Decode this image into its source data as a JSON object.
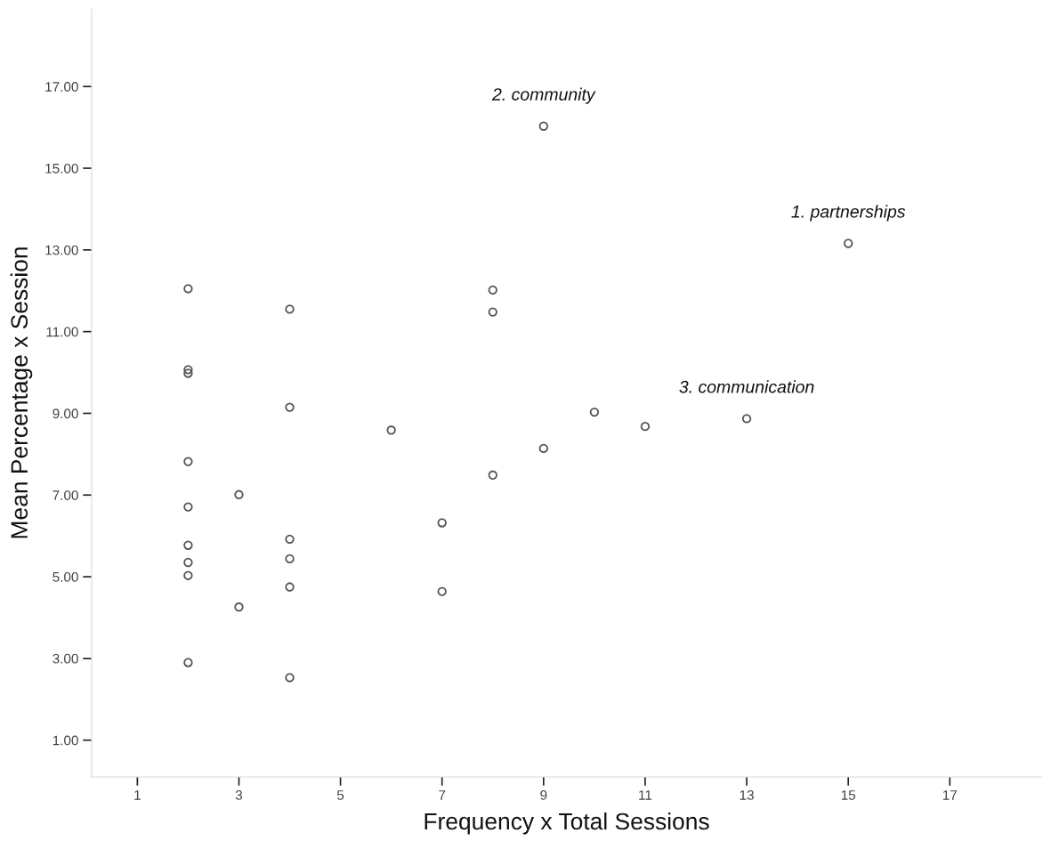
{
  "chart_data": {
    "type": "scatter",
    "xlabel": "Frequency x Total Sessions",
    "ylabel": "Mean Percentage x Session",
    "x": [
      2,
      2,
      2,
      2,
      2,
      2,
      2,
      2,
      2,
      3,
      3,
      4,
      4,
      4,
      4,
      4,
      4,
      6,
      7,
      7,
      8,
      8,
      8,
      9,
      9,
      10,
      11,
      13,
      15
    ],
    "series": [
      {
        "color": "#555555",
        "values": [
          12.05,
          10.07,
          9.98,
          7.82,
          6.71,
          5.77,
          5.35,
          5.03,
          2.9,
          7.01,
          4.26,
          11.55,
          9.15,
          5.92,
          5.44,
          4.75,
          2.53,
          8.59,
          6.32,
          4.64,
          12.02,
          11.48,
          7.49,
          16.03,
          8.14,
          9.03,
          8.68,
          8.87,
          13.16
        ]
      }
    ],
    "marker": "circle",
    "grid": false,
    "legend": false,
    "xlim": [
      0.1,
      18.8
    ],
    "ylim": [
      0.1,
      18.9
    ],
    "xticks": [
      1,
      3,
      5,
      7,
      9,
      11,
      13,
      15,
      17
    ],
    "yticks": [
      {
        "value": 1,
        "label": "1.00"
      },
      {
        "value": 3,
        "label": "3.00"
      },
      {
        "value": 5,
        "label": "5.00"
      },
      {
        "value": 7,
        "label": "7.00"
      },
      {
        "value": 9,
        "label": "9.00"
      },
      {
        "value": 11,
        "label": "11.00"
      },
      {
        "value": 13,
        "label": "13.00"
      },
      {
        "value": 15,
        "label": "15.00"
      },
      {
        "value": 17,
        "label": "17.00"
      }
    ],
    "annotations": [
      {
        "text": "2. community",
        "x": 9,
        "y": 16.03
      },
      {
        "text": "1. partnerships",
        "x": 15,
        "y": 13.16
      },
      {
        "text": "3. communication",
        "x": 13,
        "y": 8.87
      }
    ]
  }
}
